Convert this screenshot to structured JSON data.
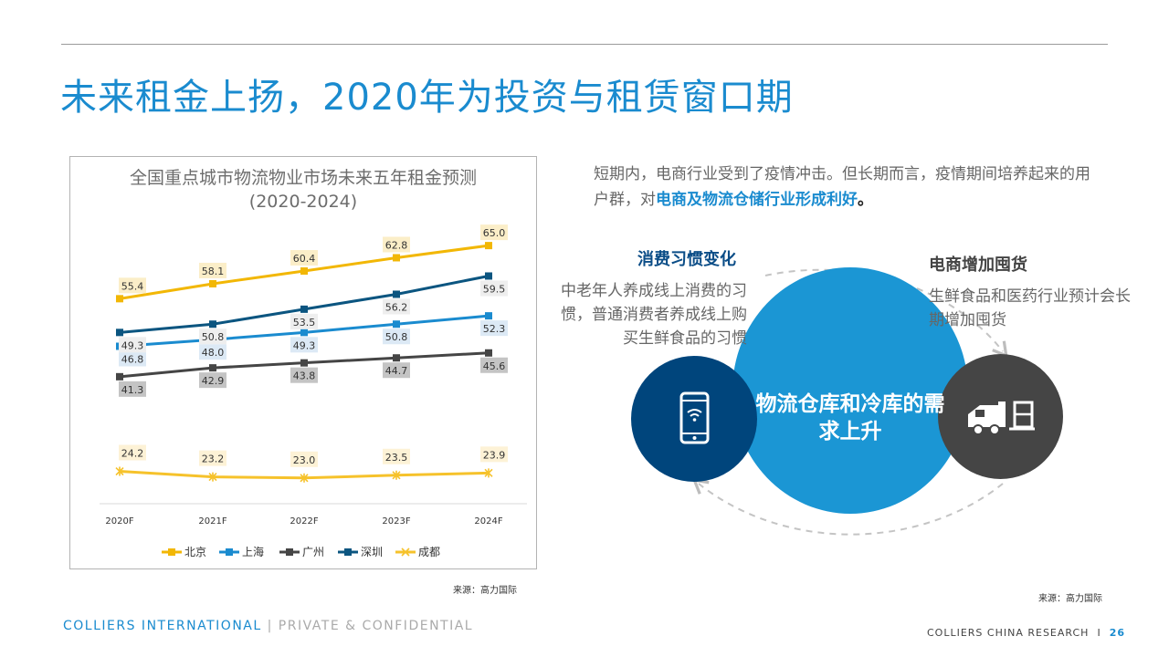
{
  "page": {
    "title": "未来租金上扬，2020年为投资与租赁窗口期"
  },
  "chart_data": {
    "type": "line",
    "title": "全国重点城市物流物业市场未来五年租金预测",
    "subtitle": "(2020-2024)",
    "categories": [
      "2020F",
      "2021F",
      "2022F",
      "2023F",
      "2024F"
    ],
    "ylim": [
      20,
      67
    ],
    "grid": false,
    "legend_position": "bottom",
    "series": [
      {
        "name": "北京",
        "values": [
          55.4,
          58.1,
          60.4,
          62.8,
          65.0
        ],
        "color": "#f2b705",
        "marker": "square",
        "label_bg": "#fbeec8"
      },
      {
        "name": "上海",
        "values": [
          46.8,
          48.0,
          49.3,
          50.8,
          52.3
        ],
        "color": "#1a8bcf",
        "marker": "square",
        "label_bg": "#dce9f5"
      },
      {
        "name": "广州",
        "values": [
          41.3,
          42.9,
          43.8,
          44.7,
          45.6
        ],
        "color": "#454545",
        "marker": "square",
        "label_bg": "#c4c4c4"
      },
      {
        "name": "深圳",
        "values": [
          49.3,
          50.8,
          53.5,
          56.2,
          59.5
        ],
        "color": "#0b5580",
        "marker": "square",
        "label_bg": "#eeeeee"
      },
      {
        "name": "成都",
        "values": [
          24.2,
          23.2,
          23.0,
          23.5,
          23.9
        ],
        "color": "#f6c22b",
        "marker": "star",
        "label_bg": "#fdf2d6"
      }
    ],
    "source": "来源：高力国际"
  },
  "intro": {
    "text": "短期内，电商行业受到了疫情冲击。但长期而言，疫情期间培养起来的用户群，对",
    "highlight": "电商及物流仓储行业形成利好",
    "tail": "。"
  },
  "diagram": {
    "center_text": "物流仓库和冷库的需求上升",
    "left_label": "消费习惯变化",
    "left_text": "中老年人养成线上消费的习惯，普通消费者养成线上购买生鲜食品的习惯",
    "left_icon": "smartphone-wifi-icon",
    "right_label": "电商增加囤货",
    "right_text": "生鲜食品和医药行业预计会长期增加囤货",
    "right_icon": "delivery-truck-icon",
    "source": "来源：高力国际"
  },
  "footer": {
    "brand": "COLLIERS INTERNATIONAL",
    "confidential": " | PRIVATE & CONFIDENTIAL",
    "research": "COLLIERS CHINA RESEARCH",
    "separator": "I",
    "page_number": "26"
  },
  "colors": {
    "accent": "#1a8bcf",
    "dark_blue": "#00457c",
    "dark_gray": "#454545"
  }
}
